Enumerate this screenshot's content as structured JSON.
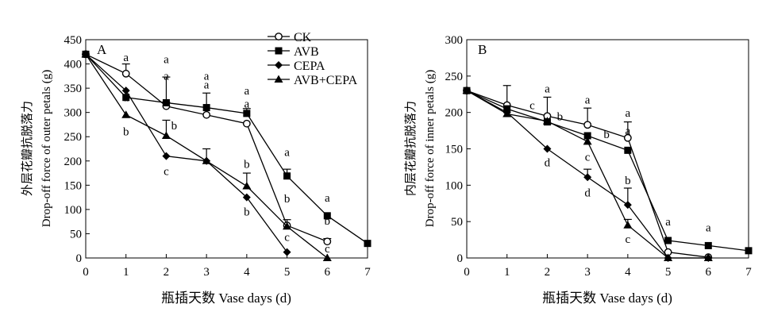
{
  "chart_data": [
    {
      "type": "line",
      "panel_label": "A",
      "ylabel_cn": "外层花瓣抗脱落力",
      "ylabel_en": "Drop-off force of outer petals (g)",
      "xlabel": "瓶插天数 Vase days (d)",
      "xlim": [
        0,
        7
      ],
      "ylim": [
        0,
        450
      ],
      "xticks": [
        0,
        1,
        2,
        3,
        4,
        5,
        6,
        7
      ],
      "yticks": [
        0,
        50,
        100,
        150,
        200,
        250,
        300,
        350,
        400,
        450
      ],
      "legend_position": "top-center",
      "series": [
        {
          "name": "CK",
          "marker": "circle-open",
          "x": [
            0,
            1,
            2,
            3,
            4,
            5,
            6
          ],
          "y": [
            420,
            380,
            313,
            295,
            277,
            67,
            34
          ],
          "err": [
            0,
            20,
            8,
            0,
            0,
            12,
            6
          ],
          "labels": [
            null,
            "a",
            "a",
            "a",
            "a",
            "b",
            "b"
          ]
        },
        {
          "name": "AVB",
          "marker": "square",
          "x": [
            0,
            1,
            2,
            3,
            4,
            5,
            6,
            7
          ],
          "y": [
            420,
            331,
            320,
            310,
            298,
            169,
            87,
            30
          ],
          "err": [
            0,
            0,
            53,
            30,
            10,
            14,
            0,
            0
          ],
          "labels": [
            null,
            "a",
            "a",
            "a",
            "a",
            "a",
            "a",
            null
          ]
        },
        {
          "name": "CEPA",
          "marker": "diamond",
          "x": [
            0,
            1,
            2,
            3,
            4,
            5
          ],
          "y": [
            420,
            345,
            210,
            200,
            125,
            12
          ],
          "err": [
            0,
            0,
            0,
            0,
            0,
            0
          ],
          "labels": [
            null,
            null,
            "c",
            null,
            "b",
            "c"
          ]
        },
        {
          "name": "AVB+CEPA",
          "marker": "triangle",
          "x": [
            0,
            1,
            2,
            3,
            4,
            5,
            6
          ],
          "y": [
            420,
            295,
            252,
            200,
            148,
            65,
            0
          ],
          "err": [
            0,
            0,
            32,
            25,
            27,
            0,
            0
          ],
          "labels": [
            null,
            "b",
            "b",
            null,
            "b",
            null,
            "c"
          ]
        }
      ]
    },
    {
      "type": "line",
      "panel_label": "B",
      "ylabel_cn": "内层花瓣抗脱落力",
      "ylabel_en": "Drop-off force of inner petals (g)",
      "xlabel": "瓶插天数 Vase days (d)",
      "xlim": [
        0,
        7
      ],
      "ylim": [
        0,
        300
      ],
      "xticks": [
        0,
        1,
        2,
        3,
        4,
        5,
        6,
        7
      ],
      "yticks": [
        0,
        50,
        100,
        150,
        200,
        250,
        300
      ],
      "series": [
        {
          "name": "CK",
          "marker": "circle-open",
          "x": [
            0,
            1,
            2,
            3,
            4,
            5,
            6
          ],
          "y": [
            230,
            210,
            195,
            183,
            165,
            8,
            1
          ],
          "err": [
            0,
            27,
            26,
            23,
            22,
            0,
            0
          ],
          "labels": [
            null,
            null,
            "a",
            "a",
            "a",
            null,
            null
          ]
        },
        {
          "name": "AVB",
          "marker": "square",
          "x": [
            0,
            1,
            2,
            3,
            4,
            5,
            6,
            7
          ],
          "y": [
            230,
            205,
            187,
            168,
            148,
            24,
            17,
            10
          ],
          "err": [
            0,
            0,
            0,
            0,
            0,
            0,
            0,
            0
          ],
          "labels": [
            null,
            null,
            "b",
            "b",
            "a",
            "a",
            "a",
            null
          ]
        },
        {
          "name": "CEPA",
          "marker": "diamond",
          "x": [
            0,
            1,
            2,
            3,
            4,
            5,
            6
          ],
          "y": [
            230,
            200,
            150,
            111,
            73,
            0,
            0
          ],
          "err": [
            0,
            0,
            0,
            11,
            23,
            0,
            0
          ],
          "labels": [
            null,
            null,
            "d",
            "d",
            "b",
            null,
            null
          ]
        },
        {
          "name": "AVB+CEPA",
          "marker": "triangle",
          "x": [
            0,
            1,
            2,
            3,
            4,
            5,
            6
          ],
          "y": [
            230,
            198,
            188,
            160,
            45,
            0,
            0
          ],
          "err": [
            0,
            0,
            0,
            0,
            8,
            0,
            0
          ],
          "labels": [
            null,
            null,
            "c",
            "c",
            "c",
            null,
            null
          ]
        }
      ]
    }
  ]
}
